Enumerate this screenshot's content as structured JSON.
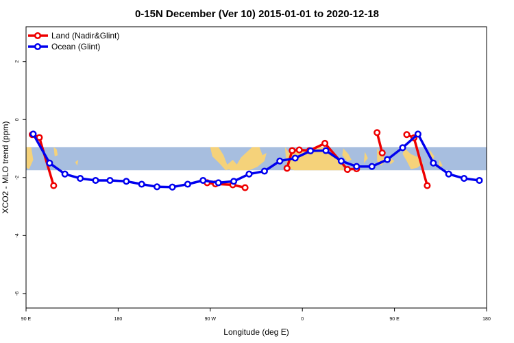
{
  "chart_data": {
    "type": "line",
    "title": "0-15N December (Ver 10)   2015-01-01 to 2020-12-18",
    "xlabel": "Longitude (deg E)",
    "ylabel": "XCO2 - MLO trend (ppm)",
    "xlim": [
      90,
      540
    ],
    "ylim": [
      -6.5,
      3.2
    ],
    "x_ticks": [
      {
        "value": 90,
        "label": "90 E"
      },
      {
        "value": 180,
        "label": "180"
      },
      {
        "value": 270,
        "label": "90 W"
      },
      {
        "value": 360,
        "label": "0"
      },
      {
        "value": 450,
        "label": "90 E"
      },
      {
        "value": 540,
        "label": "180"
      }
    ],
    "y_ticks": [
      {
        "value": 2,
        "label": "2"
      },
      {
        "value": 0,
        "label": "0"
      },
      {
        "value": -2,
        "label": "-2"
      },
      {
        "value": -4,
        "label": "-4"
      },
      {
        "value": -6,
        "label": "-6"
      }
    ],
    "latitude_band": [
      -0.95,
      -1.75
    ],
    "legend_position": "top-left",
    "colors": {
      "ocean_band": "#a7bedf",
      "land_band": "#f5d27a"
    },
    "series": [
      {
        "name": "Land (Nadir&Glint)",
        "color": "#ee0000",
        "segments": [
          [
            [
              96,
              -0.52
            ],
            [
              103,
              -0.62
            ],
            [
              117,
              -2.28
            ]
          ],
          [
            [
              267,
              -2.18
            ],
            [
              275,
              -2.22
            ],
            [
              292,
              -2.25
            ],
            [
              304,
              -2.35
            ]
          ],
          [
            [
              345,
              -1.68
            ],
            [
              350,
              -1.07
            ],
            [
              357,
              -1.05
            ],
            [
              367,
              -1.07
            ],
            [
              382,
              -0.82
            ],
            [
              404,
              -1.72
            ],
            [
              413,
              -1.7
            ]
          ],
          [
            [
              433,
              -0.45
            ],
            [
              438,
              -1.15
            ]
          ],
          [
            [
              462,
              -0.52
            ],
            [
              469,
              -0.63
            ],
            [
              482,
              -2.28
            ]
          ]
        ]
      },
      {
        "name": "Ocean (Glint)",
        "color": "#0000ee",
        "segments": [
          [
            [
              97,
              -0.5
            ],
            [
              113,
              -1.5
            ],
            [
              128,
              -1.88
            ],
            [
              143,
              -2.03
            ],
            [
              158,
              -2.1
            ],
            [
              172,
              -2.1
            ],
            [
              188,
              -2.13
            ],
            [
              203,
              -2.23
            ],
            [
              218,
              -2.32
            ],
            [
              233,
              -2.33
            ],
            [
              248,
              -2.23
            ],
            [
              263,
              -2.1
            ],
            [
              278,
              -2.18
            ],
            [
              293,
              -2.13
            ],
            [
              308,
              -1.88
            ],
            [
              323,
              -1.78
            ],
            [
              338,
              -1.43
            ],
            [
              353,
              -1.33
            ],
            [
              368,
              -1.08
            ],
            [
              383,
              -1.07
            ],
            [
              398,
              -1.43
            ],
            [
              413,
              -1.62
            ],
            [
              428,
              -1.62
            ],
            [
              443,
              -1.38
            ],
            [
              458,
              -0.97
            ],
            [
              473,
              -0.5
            ],
            [
              488,
              -1.5
            ],
            [
              503,
              -1.88
            ],
            [
              518,
              -2.03
            ],
            [
              533,
              -2.1
            ]
          ]
        ]
      }
    ]
  }
}
